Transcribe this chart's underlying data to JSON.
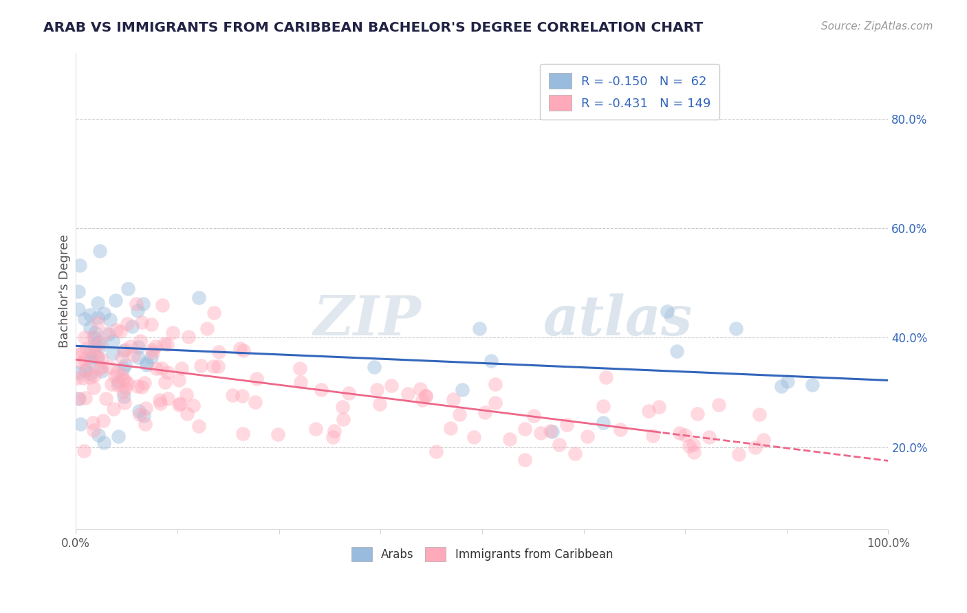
{
  "title": "ARAB VS IMMIGRANTS FROM CARIBBEAN BACHELOR'S DEGREE CORRELATION CHART",
  "source_text": "Source: ZipAtlas.com",
  "ylabel": "Bachelor's Degree",
  "watermark_zip": "ZIP",
  "watermark_atlas": "atlas",
  "xlim": [
    0.0,
    1.0
  ],
  "ylim": [
    0.05,
    0.92
  ],
  "ytick_positions": [
    0.2,
    0.4,
    0.6,
    0.8
  ],
  "ytick_labels_right": [
    "20.0%",
    "40.0%",
    "60.0%",
    "80.0%"
  ],
  "xtick_positions": [
    0.0,
    1.0
  ],
  "xtick_labels": [
    "0.0%",
    "100.0%"
  ],
  "legend_r1": "R = -0.150",
  "legend_n1": "N =  62",
  "legend_r2": "R = -0.431",
  "legend_n2": "N = 149",
  "series1_color": "#99BBDD",
  "series2_color": "#FFAABB",
  "line1_color": "#3366BB",
  "line2_color": "#EE6688",
  "line1_intercept": 0.385,
  "line1_slope": -0.063,
  "line2_intercept": 0.36,
  "line2_slope": -0.185,
  "legend_label1": "Arabs",
  "legend_label2": "Immigrants from Caribbean",
  "grid_color": "#CCCCCC",
  "background_color": "#FFFFFF",
  "title_color": "#222244",
  "source_color": "#999999",
  "dot_size": 220,
  "dot_alpha": 0.45
}
